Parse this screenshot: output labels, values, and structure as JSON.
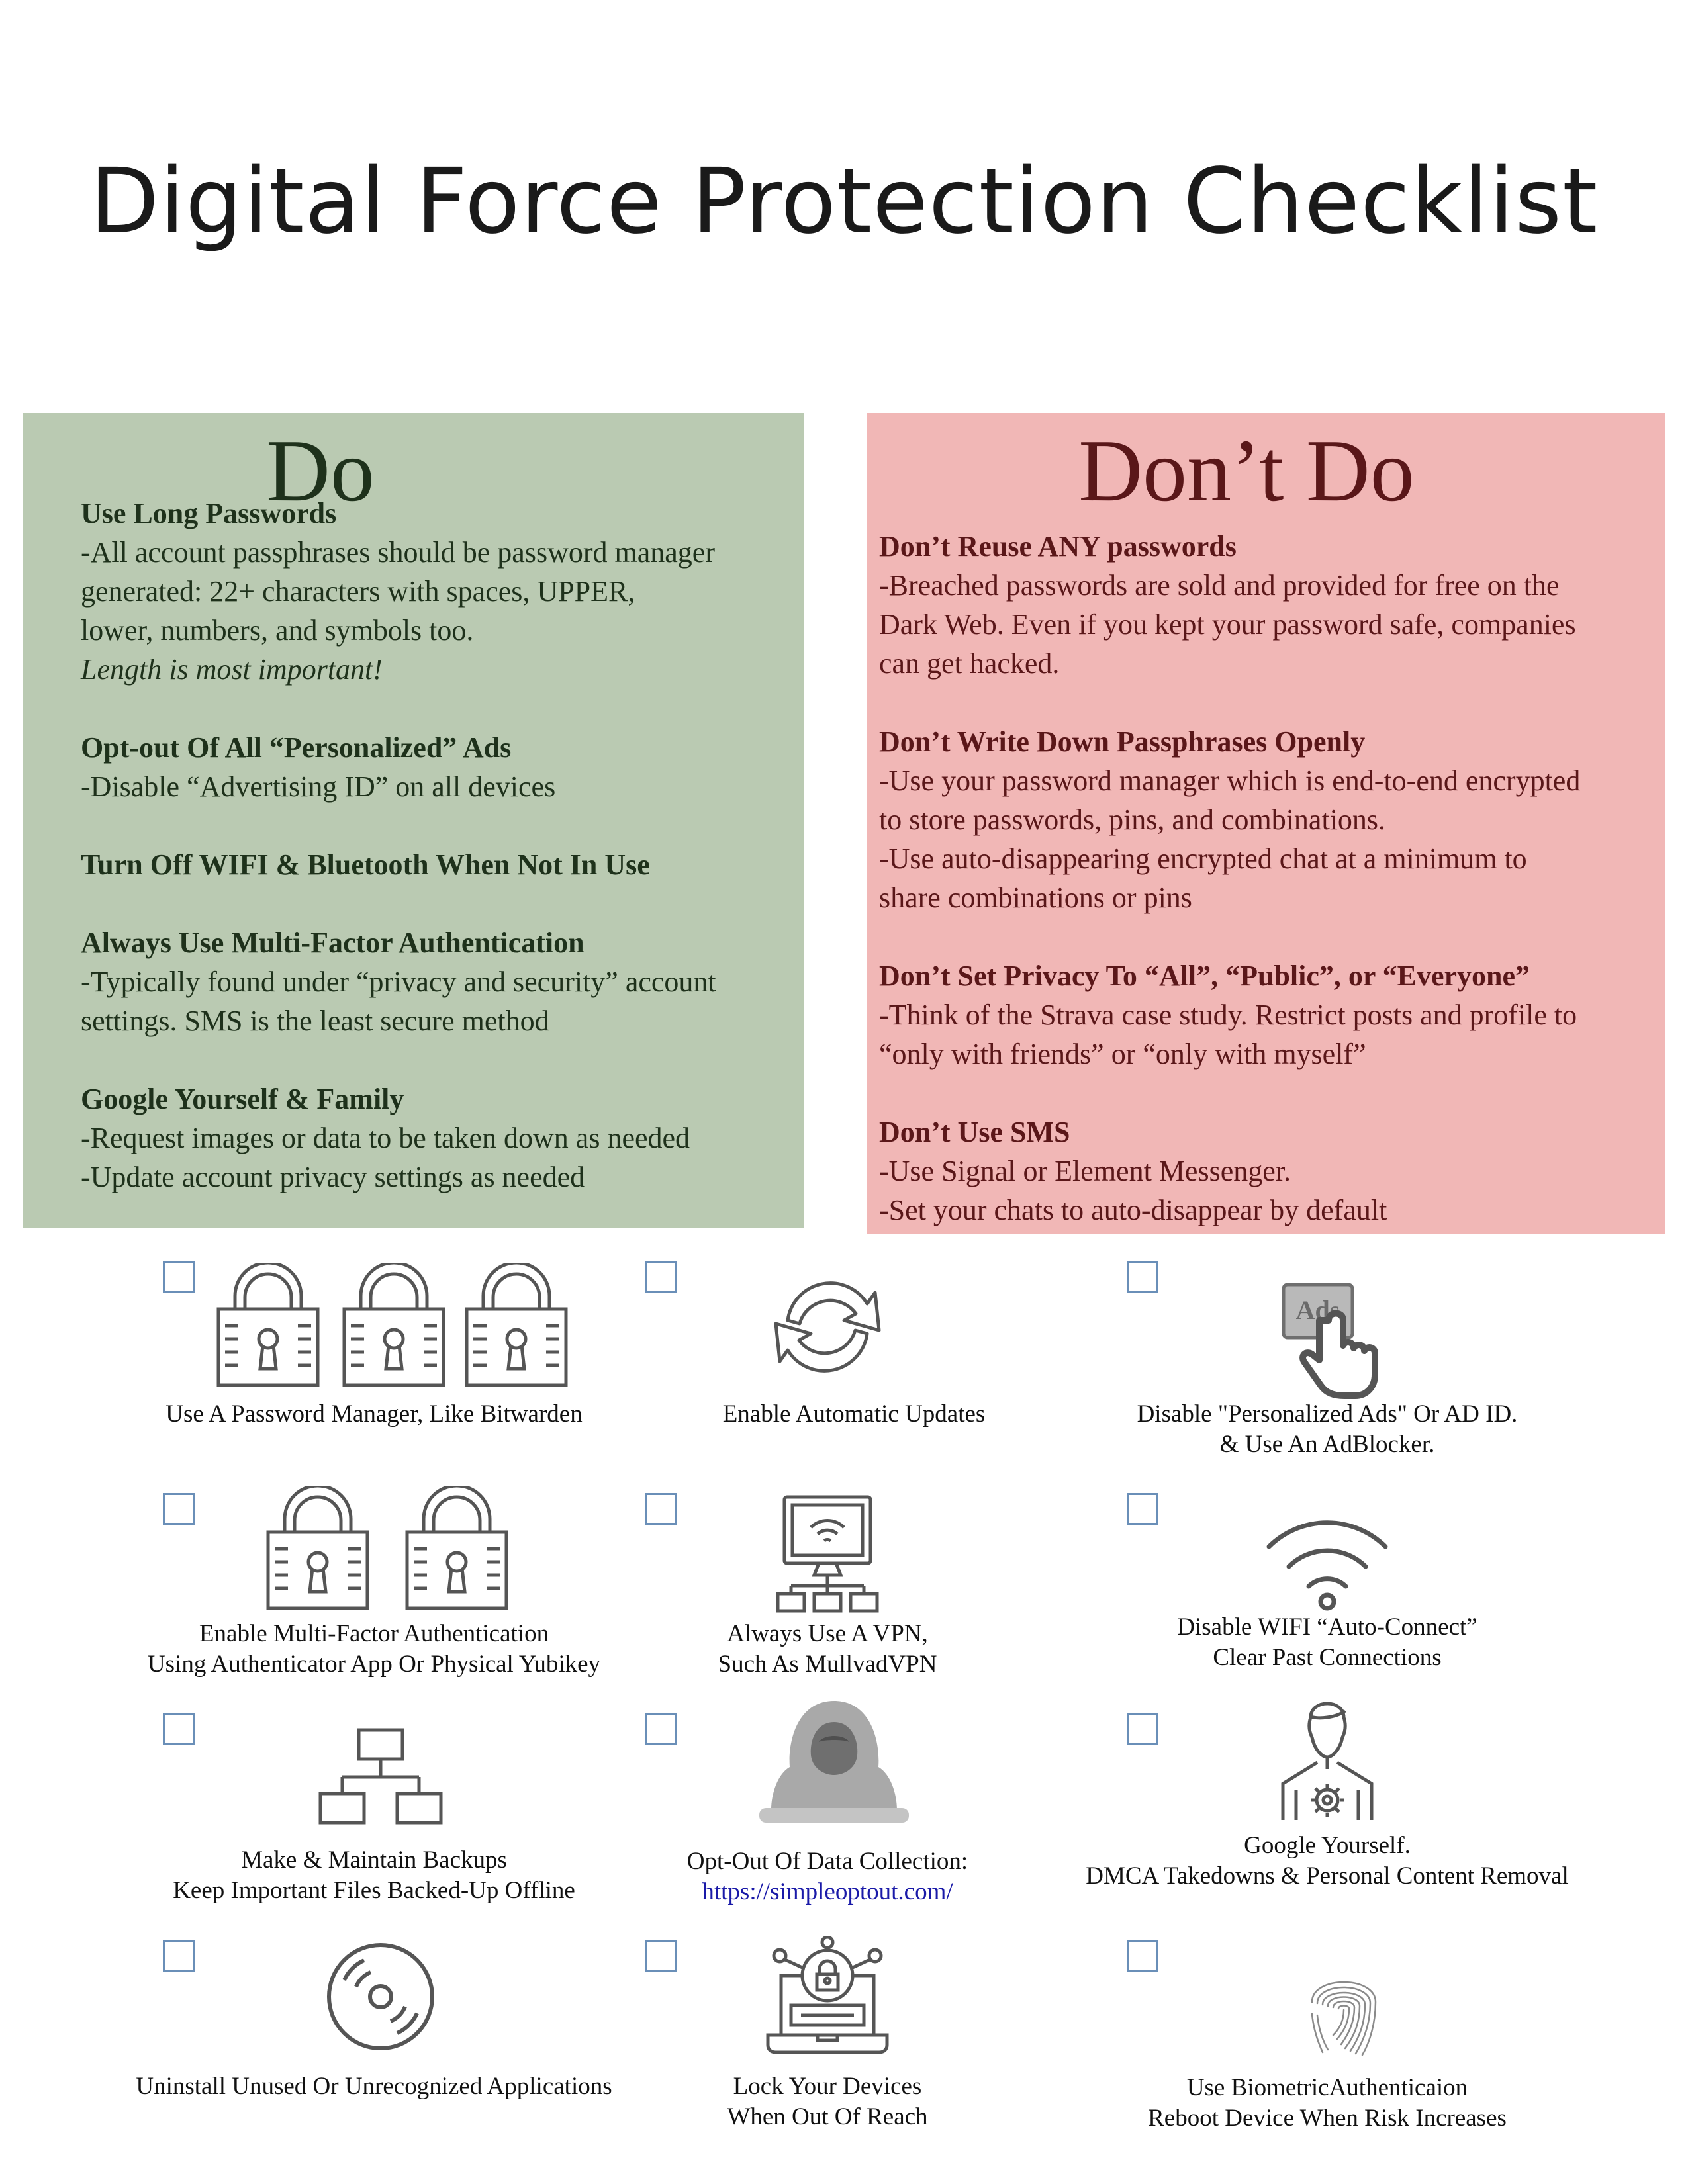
{
  "page": {
    "title": "Digital Force Protection Checklist"
  },
  "do_panel": {
    "heading": "Do",
    "sections": [
      {
        "title": "Use Long Passwords",
        "lines": [
          "-All account passphrases should be password manager",
          "generated: 22+ characters with spaces, UPPER,",
          "lower, numbers, and symbols too."
        ],
        "emphasis": "Length is most important!"
      },
      {
        "title": "Opt-out Of All “Personalized” Ads",
        "lines": [
          "-Disable “Advertising ID” on all devices"
        ]
      },
      {
        "title": "Turn Off WIFI & Bluetooth When Not In Use",
        "lines": []
      },
      {
        "title": "Always Use Multi-Factor Authentication",
        "lines": [
          "-Typically found under “privacy and security” account",
          "settings. SMS is the least secure method"
        ]
      },
      {
        "title": "Google Yourself & Family",
        "lines": [
          "-Request images or data to be taken down as needed",
          "-Update account privacy settings as needed"
        ]
      }
    ]
  },
  "dont_panel": {
    "heading": "Don’t Do",
    "sections": [
      {
        "title": "Don’t Reuse ANY passwords",
        "lines": [
          "-Breached passwords are sold and provided for free on the",
          "Dark Web. Even if you kept your password safe, companies",
          "can get hacked."
        ]
      },
      {
        "title": "Don’t Write Down Passphrases Openly",
        "lines": [
          "-Use your password manager which is end-to-end encrypted",
          "to store passwords, pins, and combinations.",
          "-Use auto-disappearing encrypted chat at a minimum to",
          "share combinations or pins"
        ]
      },
      {
        "title": "Don’t Set Privacy To “All”, “Public”, or “Everyone”",
        "lines": [
          "-Think of the Strava case study. Restrict posts and profile to",
          "“only with friends” or “only with myself”"
        ]
      },
      {
        "title": "Don’t Use SMS",
        "lines": [
          "-Use Signal or Element Messenger.",
          "-Set your chats to auto-disappear by default"
        ]
      }
    ]
  },
  "checklist": [
    {
      "icon": "padlock-triple-icon",
      "lines": [
        "Use A Password Manager, Like Bitwarden"
      ]
    },
    {
      "icon": "refresh-arrows-icon",
      "lines": [
        "Enable Automatic Updates"
      ]
    },
    {
      "icon": "ads-click-icon",
      "icon_text": "Ads",
      "lines": [
        "Disable \"Personalized Ads\" Or AD ID.",
        "& Use An AdBlocker."
      ]
    },
    {
      "icon": "padlock-double-icon",
      "lines": [
        "Enable Multi-Factor Authentication",
        "Using Authenticator App Or Physical Yubikey"
      ]
    },
    {
      "icon": "vpn-network-icon",
      "lines": [
        "Always Use A VPN,",
        "Such As MullvadVPN"
      ]
    },
    {
      "icon": "wifi-icon",
      "lines": [
        "Disable WIFI “Auto-Connect”",
        "Clear Past Connections"
      ]
    },
    {
      "icon": "backup-tree-icon",
      "lines": [
        "Make & Maintain Backups",
        "Keep Important Files Backed-Up Offline"
      ]
    },
    {
      "icon": "hooded-hacker-icon",
      "lines": [
        "Opt-Out Of Data Collection:"
      ],
      "link": "https://simpleoptout.com/"
    },
    {
      "icon": "user-gear-icon",
      "lines": [
        "Google Yourself.",
        "DMCA Takedowns & Personal Content Removal"
      ]
    },
    {
      "icon": "disc-icon",
      "lines": [
        "Uninstall Unused Or Unrecognized Applications"
      ]
    },
    {
      "icon": "locked-laptop-icon",
      "lines": [
        "Lock Your Devices",
        "When Out Of Reach"
      ]
    },
    {
      "icon": "fingerprint-icon",
      "lines": [
        "Use BiometricAuthenticaion",
        "Reboot Device When Risk Increases"
      ]
    }
  ],
  "colors": {
    "do_panel_bg": "#bacab2",
    "do_text": "#1e311b",
    "dont_panel_bg": "#f1b7b6",
    "dont_text": "#5a1719",
    "checkbox_border": "#6a8fb8",
    "link": "#1a1aa8"
  }
}
